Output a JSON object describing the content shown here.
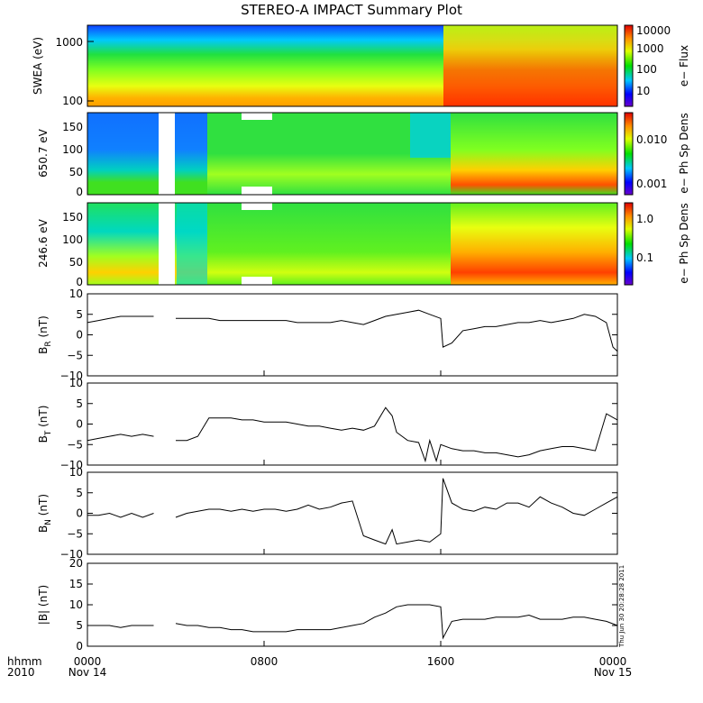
{
  "title": "STEREO-A IMPACT Summary Plot",
  "stamp": "Thu Jun 30 20:28:28 2011",
  "colors": {
    "axis": "#000000",
    "line": "#000000",
    "background": "#ffffff"
  },
  "chart_data": [
    {
      "type": "heatmap",
      "ylabel": "SWEA (eV)",
      "y_scale": "log",
      "ylim": [
        90,
        2000
      ],
      "yticks": [
        "1000",
        "100"
      ],
      "colorbar": {
        "label": "e− Flux",
        "scale": "log",
        "ticks": [
          "10000",
          "1000",
          "100",
          "10"
        ]
      },
      "description_levels": "low energy high flux (red) after 1600, orange/yellow before"
    },
    {
      "type": "heatmap",
      "ylabel": "650.7 eV",
      "ylim": [
        0,
        180
      ],
      "yticks": [
        "150",
        "100",
        "50",
        "0"
      ],
      "colorbar": {
        "label": "e− Ph Sp Dens",
        "scale": "log",
        "ticks": [
          "0.010",
          "0.001"
        ]
      },
      "data_gaps_hours": [
        [
          3.3,
          3.7
        ]
      ]
    },
    {
      "type": "heatmap",
      "ylabel": "246.6 eV",
      "ylim": [
        0,
        180
      ],
      "yticks": [
        "150",
        "100",
        "50",
        "0"
      ],
      "colorbar": {
        "label": "e− Ph Sp Dens",
        "scale": "log",
        "ticks": [
          "1.0",
          "0.1"
        ]
      },
      "data_gaps_hours": [
        [
          3.3,
          3.7
        ]
      ]
    },
    {
      "type": "line",
      "ylabel_main": "B",
      "ylabel_sub": "R",
      "ylabel_unit": " (nT)",
      "ylim": [
        -10,
        10
      ],
      "yticks": [
        "10",
        "5",
        "0",
        "−5",
        "−10"
      ],
      "x_hours": [
        0,
        0.5,
        1.0,
        1.5,
        2.0,
        2.5,
        3.0,
        3.3,
        4.0,
        4.5,
        5.0,
        5.5,
        6.0,
        6.5,
        7.0,
        7.5,
        8.0,
        8.5,
        9.0,
        9.5,
        10.0,
        10.5,
        11.0,
        11.5,
        12.0,
        12.5,
        13.0,
        13.5,
        14.0,
        14.5,
        15.0,
        15.5,
        16.0,
        16.1,
        16.5,
        17.0,
        17.5,
        18.0,
        18.5,
        19.0,
        19.5,
        20.0,
        20.5,
        21.0,
        21.5,
        22.0,
        22.5,
        23.0,
        23.5,
        23.8,
        24.0
      ],
      "values": [
        3,
        3.5,
        4,
        4.5,
        4.5,
        4.5,
        4.5,
        null,
        4,
        4,
        4,
        4,
        3.5,
        3.5,
        3.5,
        3.5,
        3.5,
        3.5,
        3.5,
        3,
        3,
        3,
        3,
        3.5,
        3,
        2.5,
        3.5,
        4.5,
        5,
        5.5,
        6,
        5,
        4,
        -3,
        -2,
        1,
        1.5,
        2,
        2,
        2.5,
        3,
        3,
        3.5,
        3,
        3.5,
        4,
        5,
        4.5,
        3,
        -3,
        -4
      ]
    },
    {
      "type": "line",
      "ylabel_main": "B",
      "ylabel_sub": "T",
      "ylabel_unit": " (nT)",
      "ylim": [
        -10,
        10
      ],
      "yticks": [
        "10",
        "5",
        "0",
        "−5",
        "−10"
      ],
      "x_hours": [
        0,
        0.5,
        1.0,
        1.5,
        2.0,
        2.5,
        3.0,
        3.3,
        4.0,
        4.5,
        5.0,
        5.5,
        6.0,
        6.5,
        7.0,
        7.5,
        8.0,
        8.5,
        9.0,
        9.5,
        10.0,
        10.5,
        11.0,
        11.5,
        12.0,
        12.5,
        13.0,
        13.5,
        13.8,
        14.0,
        14.5,
        15.0,
        15.3,
        15.5,
        15.8,
        16.0,
        16.5,
        17.0,
        17.5,
        18.0,
        18.5,
        19.0,
        19.5,
        20.0,
        20.5,
        21.0,
        21.5,
        22.0,
        22.5,
        23.0,
        23.5,
        24.0
      ],
      "values": [
        -4,
        -3.5,
        -3,
        -2.5,
        -3,
        -2.5,
        -3,
        null,
        -4,
        -4,
        -3,
        1.5,
        1.5,
        1.5,
        1,
        1,
        0.5,
        0.5,
        0.5,
        0,
        -0.5,
        -0.5,
        -1,
        -1.5,
        -1,
        -1.5,
        -0.5,
        4,
        2,
        -2,
        -4,
        -4.5,
        -9,
        -4,
        -9,
        -5,
        -6,
        -6.5,
        -6.5,
        -7,
        -7,
        -7.5,
        -8,
        -7.5,
        -6.5,
        -6,
        -5.5,
        -5.5,
        -6,
        -6.5,
        2.5,
        1
      ]
    },
    {
      "type": "line",
      "ylabel_main": "B",
      "ylabel_sub": "N",
      "ylabel_unit": " (nT)",
      "ylim": [
        -10,
        10
      ],
      "yticks": [
        "10",
        "5",
        "0",
        "−5",
        "−10"
      ],
      "x_hours": [
        0,
        0.5,
        1.0,
        1.5,
        2.0,
        2.5,
        3.0,
        3.3,
        4.0,
        4.5,
        5.0,
        5.5,
        6.0,
        6.5,
        7.0,
        7.5,
        8.0,
        8.5,
        9.0,
        9.5,
        10.0,
        10.5,
        11.0,
        11.5,
        12.0,
        12.5,
        13.0,
        13.5,
        13.8,
        14.0,
        14.5,
        15.0,
        15.5,
        16.0,
        16.1,
        16.5,
        17.0,
        17.5,
        18.0,
        18.5,
        19.0,
        19.5,
        20.0,
        20.5,
        21.0,
        21.5,
        22.0,
        22.5,
        23.0,
        23.5,
        24.0
      ],
      "values": [
        -0.5,
        -0.5,
        0,
        -1,
        0,
        -1,
        0,
        null,
        -1,
        0,
        0.5,
        1,
        1,
        0.5,
        1,
        0.5,
        1,
        1,
        0.5,
        1,
        2,
        1,
        1.5,
        2.5,
        3,
        -5.5,
        -6.5,
        -7.5,
        -4,
        -7.5,
        -7,
        -6.5,
        -7,
        -5,
        8.5,
        2.5,
        1,
        0.5,
        1.5,
        1,
        2.5,
        2.5,
        1.5,
        4,
        2.5,
        1.5,
        0,
        -0.5,
        1,
        2.5,
        4
      ]
    },
    {
      "type": "line",
      "ylabel": "|B| (nT)",
      "ylim": [
        0,
        20
      ],
      "yticks": [
        "20",
        "15",
        "10",
        "5",
        "0"
      ],
      "x_hours": [
        0,
        0.5,
        1.0,
        1.5,
        2.0,
        2.5,
        3.0,
        3.3,
        4.0,
        4.5,
        5.0,
        5.5,
        6.0,
        6.5,
        7.0,
        7.5,
        8.0,
        8.5,
        9.0,
        9.5,
        10.0,
        10.5,
        11.0,
        11.5,
        12.0,
        12.5,
        13.0,
        13.5,
        14.0,
        14.5,
        15.0,
        15.5,
        16.0,
        16.1,
        16.5,
        17.0,
        17.5,
        18.0,
        18.5,
        19.0,
        19.5,
        20.0,
        20.5,
        21.0,
        21.5,
        22.0,
        22.5,
        23.0,
        23.5,
        24.0
      ],
      "values": [
        5,
        5,
        5,
        4.5,
        5,
        5,
        5,
        null,
        5.5,
        5,
        5,
        4.5,
        4.5,
        4,
        4,
        3.5,
        3.5,
        3.5,
        3.5,
        4,
        4,
        4,
        4,
        4.5,
        5,
        5.5,
        7,
        8,
        9.5,
        10,
        10,
        10,
        9.5,
        2,
        6,
        6.5,
        6.5,
        6.5,
        7,
        7,
        7,
        7.5,
        6.5,
        6.5,
        6.5,
        7,
        7,
        6.5,
        6,
        5
      ]
    }
  ],
  "x_axis": {
    "range_hours": [
      0,
      24
    ],
    "left_caption": [
      "hhmm",
      "2010"
    ],
    "ticks": [
      {
        "hour": 0,
        "time": "0000",
        "date": "Nov 14"
      },
      {
        "hour": 8,
        "time": "0800",
        "date": ""
      },
      {
        "hour": 16,
        "time": "1600",
        "date": ""
      },
      {
        "hour": 24,
        "time": "0000",
        "date": "Nov 15"
      }
    ]
  }
}
